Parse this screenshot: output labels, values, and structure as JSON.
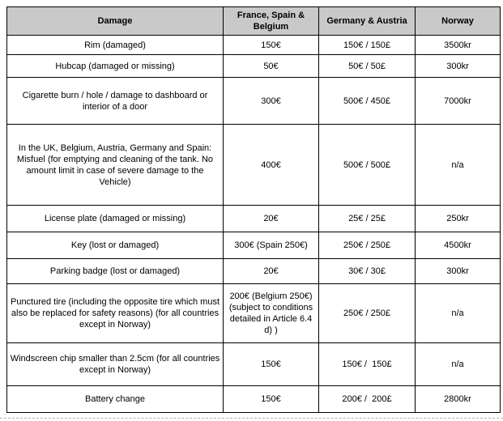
{
  "table": {
    "columns": [
      "Damage",
      "France, Spain & Belgium",
      "Germany & Austria",
      "Norway"
    ],
    "rows": [
      {
        "damage": "Rim (damaged)",
        "france_spain_belgium": "150€",
        "germany_austria": "150€ / 150£",
        "norway": "3500kr"
      },
      {
        "damage": "Hubcap (damaged or missing)",
        "france_spain_belgium": "50€",
        "germany_austria": "50€ / 50£",
        "norway": "300kr"
      },
      {
        "damage": "Cigarette burn / hole / damage to dashboard or interior of a door",
        "france_spain_belgium": "300€",
        "germany_austria": "500€ / 450£",
        "norway": "7000kr"
      },
      {
        "damage": "In the UK, Belgium, Austria, Germany and Spain: Misfuel (for emptying and cleaning of the tank. No amount limit in case of severe damage to the Vehicle)",
        "france_spain_belgium": "400€",
        "germany_austria": "500€ / 500£",
        "norway": "n/a"
      },
      {
        "damage": "License plate (damaged or missing)",
        "france_spain_belgium": "20€",
        "germany_austria": "25€ / 25£",
        "norway": "250kr"
      },
      {
        "damage": "Key (lost or damaged)",
        "france_spain_belgium": "300€ (Spain 250€)",
        "germany_austria": "250€ / 250£",
        "norway": "4500kr"
      },
      {
        "damage": "Parking badge (lost or damaged)",
        "france_spain_belgium": "20€",
        "germany_austria": "30€ / 30£",
        "norway": "300kr"
      },
      {
        "damage": "Punctured tire (including the opposite tire which must also be replaced for safety reasons) (for all countries except in Norway)",
        "france_spain_belgium": "200€ (Belgium 250€) (subject to conditions detailed in Article 6.4 d) )",
        "germany_austria": "250€ / 250£",
        "norway": "n/a"
      },
      {
        "damage": "Windscreen chip smaller than 2.5cm (for all countries except in Norway)",
        "france_spain_belgium": "150€",
        "germany_austria": "150€ /  150£",
        "norway": "n/a"
      },
      {
        "damage": "Battery change",
        "france_spain_belgium": "150€",
        "germany_austria": "200€ /  200£",
        "norway": "2800kr"
      }
    ]
  }
}
